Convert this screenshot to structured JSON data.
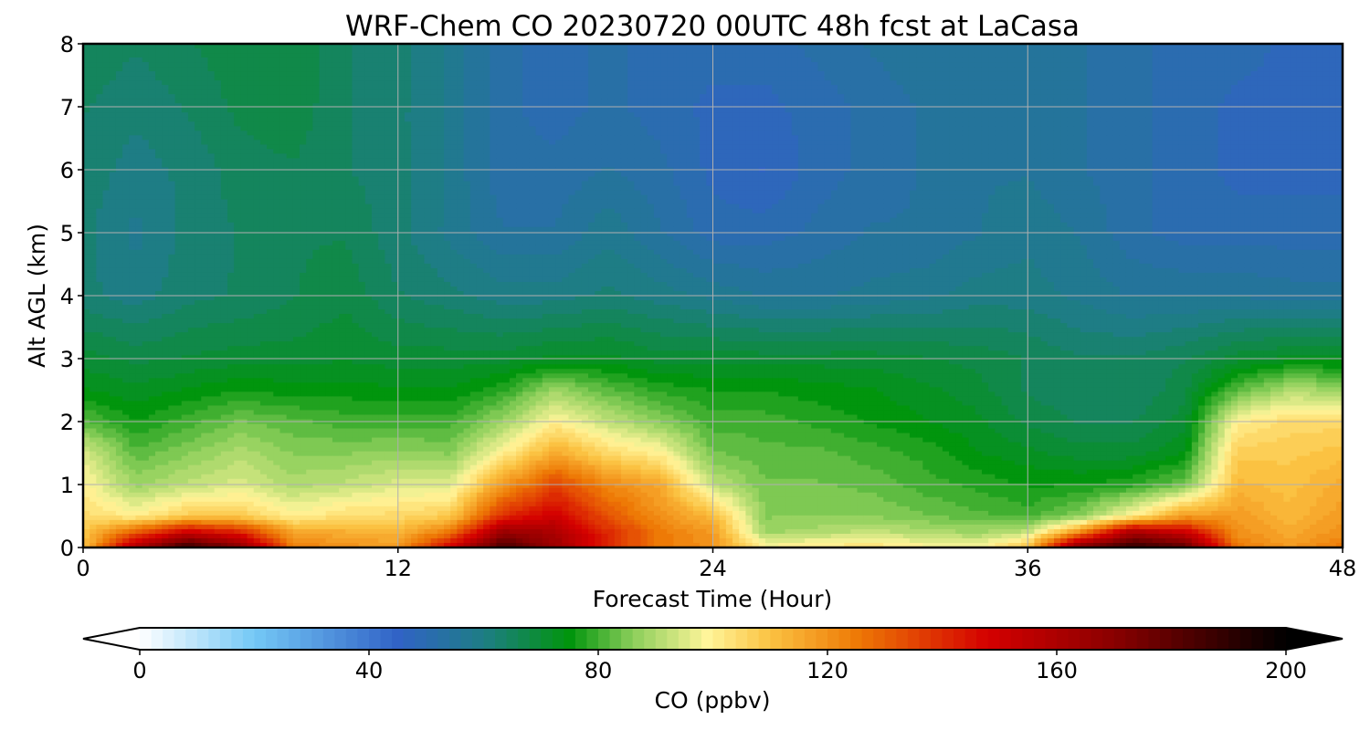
{
  "chart_data": {
    "type": "heatmap",
    "title": "WRF-Chem CO  20230720 00UTC 48h fcst at LaCasa",
    "xlabel": "Forecast Time (Hour)",
    "ylabel": "Alt AGL (km)",
    "xlim": [
      0,
      48
    ],
    "ylim": [
      0,
      8
    ],
    "xticks": [
      "0",
      "12",
      "24",
      "36",
      "48"
    ],
    "yticks": [
      "0",
      "1",
      "2",
      "3",
      "4",
      "5",
      "6",
      "7",
      "8"
    ],
    "grid": true,
    "colorbar": {
      "label": "CO  (ppbv)",
      "range": [
        0,
        200
      ],
      "ticks": [
        "0",
        "40",
        "80",
        "120",
        "160",
        "200"
      ],
      "extend": "both",
      "under_color": "#ffffff",
      "over_color": "#000000",
      "stops": [
        {
          "v": 0,
          "c": "#ffffff"
        },
        {
          "v": 20,
          "c": "#74c8f6"
        },
        {
          "v": 45,
          "c": "#3163c6"
        },
        {
          "v": 60,
          "c": "#1e7d85"
        },
        {
          "v": 75,
          "c": "#01950d"
        },
        {
          "v": 86,
          "c": "#8bce5a"
        },
        {
          "v": 99,
          "c": "#fff59a"
        },
        {
          "v": 110,
          "c": "#fbc242"
        },
        {
          "v": 125,
          "c": "#ee7a06"
        },
        {
          "v": 148,
          "c": "#d40000"
        },
        {
          "v": 170,
          "c": "#8a0000"
        },
        {
          "v": 200,
          "c": "#000000"
        }
      ]
    },
    "x": [
      0,
      2,
      4,
      6,
      8,
      10,
      12,
      14,
      16,
      18,
      20,
      22,
      24,
      26,
      28,
      30,
      32,
      34,
      36,
      38,
      40,
      42,
      44,
      46,
      48
    ],
    "y": [
      0,
      0.25,
      0.5,
      1,
      1.5,
      2,
      2.5,
      3,
      4,
      5,
      6,
      7,
      8
    ],
    "z": [
      [
        110,
        160,
        190,
        170,
        125,
        120,
        118,
        150,
        185,
        165,
        140,
        125,
        120,
        100,
        102,
        104,
        100,
        98,
        110,
        175,
        190,
        180,
        125,
        118,
        125
      ],
      [
        108,
        130,
        150,
        140,
        115,
        114,
        112,
        125,
        165,
        160,
        140,
        125,
        118,
        88,
        90,
        92,
        90,
        88,
        92,
        120,
        160,
        150,
        120,
        115,
        120
      ],
      [
        105,
        100,
        108,
        108,
        100,
        104,
        105,
        108,
        140,
        150,
        132,
        120,
        112,
        86,
        86,
        86,
        84,
        82,
        80,
        86,
        100,
        118,
        118,
        112,
        118
      ],
      [
        100,
        88,
        92,
        95,
        90,
        92,
        95,
        95,
        118,
        135,
        122,
        115,
        92,
        84,
        84,
        83,
        80,
        78,
        76,
        76,
        78,
        84,
        112,
        110,
        115
      ],
      [
        95,
        82,
        86,
        90,
        86,
        86,
        87,
        86,
        100,
        115,
        105,
        100,
        84,
        82,
        82,
        80,
        78,
        74,
        72,
        70,
        70,
        74,
        108,
        108,
        110
      ],
      [
        82,
        76,
        80,
        84,
        82,
        80,
        80,
        80,
        88,
        100,
        92,
        86,
        80,
        80,
        78,
        76,
        74,
        72,
        68,
        66,
        66,
        70,
        100,
        105,
        105
      ],
      [
        74,
        72,
        74,
        76,
        75,
        75,
        74,
        74,
        78,
        88,
        82,
        78,
        76,
        76,
        75,
        74,
        72,
        70,
        66,
        64,
        64,
        68,
        82,
        90,
        88
      ],
      [
        70,
        68,
        69,
        70,
        70,
        71,
        70,
        70,
        70,
        72,
        72,
        70,
        70,
        70,
        70,
        70,
        69,
        68,
        66,
        64,
        64,
        66,
        70,
        72,
        72
      ],
      [
        62,
        60,
        63,
        64,
        66,
        68,
        64,
        62,
        60,
        60,
        62,
        60,
        58,
        56,
        56,
        57,
        58,
        60,
        60,
        58,
        56,
        56,
        56,
        55,
        55
      ],
      [
        62,
        58,
        62,
        64,
        66,
        66,
        62,
        58,
        54,
        54,
        58,
        54,
        50,
        50,
        52,
        54,
        54,
        56,
        58,
        56,
        52,
        50,
        50,
        50,
        50
      ],
      [
        63,
        60,
        62,
        65,
        66,
        64,
        62,
        58,
        52,
        52,
        54,
        52,
        48,
        46,
        50,
        52,
        54,
        56,
        56,
        54,
        52,
        50,
        48,
        48,
        48
      ],
      [
        64,
        62,
        64,
        67,
        68,
        64,
        62,
        58,
        52,
        50,
        52,
        50,
        48,
        48,
        50,
        52,
        54,
        56,
        56,
        54,
        52,
        50,
        48,
        48,
        48
      ],
      [
        66,
        64,
        66,
        68,
        68,
        64,
        62,
        58,
        52,
        50,
        52,
        50,
        50,
        50,
        52,
        54,
        56,
        56,
        56,
        54,
        52,
        50,
        50,
        48,
        48
      ]
    ]
  }
}
